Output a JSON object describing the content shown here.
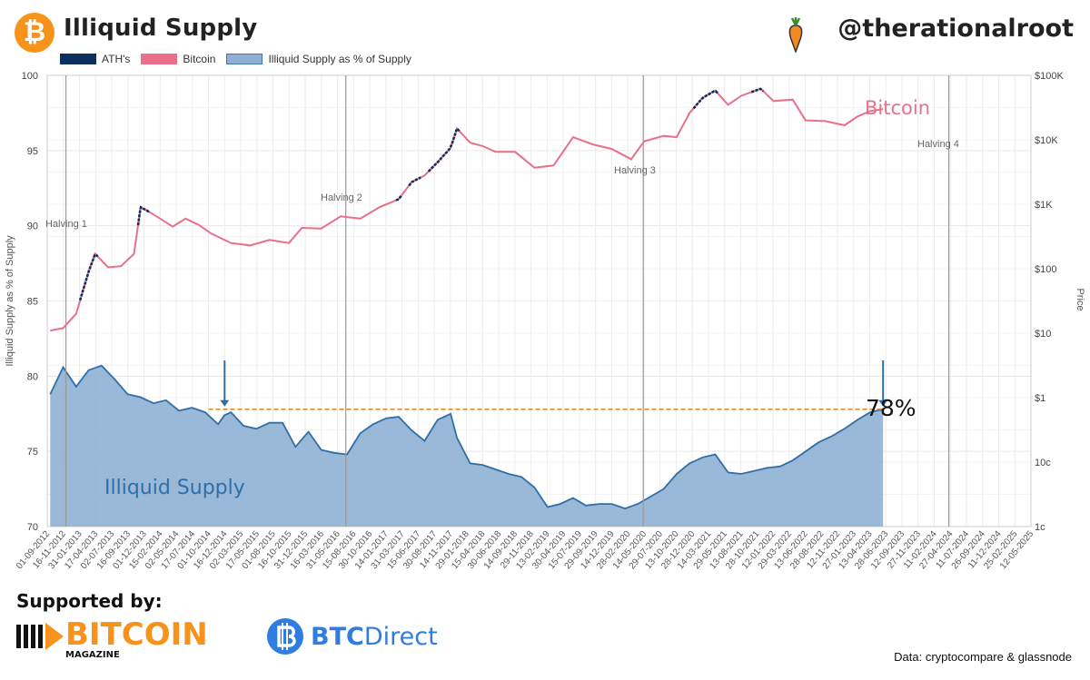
{
  "header": {
    "title": "Illiquid Supply",
    "handle": "@therationalroot",
    "logo_symbol": "₿"
  },
  "legend": [
    {
      "label": "ATH's",
      "color": "#0d2f5e"
    },
    {
      "label": "Bitcoin",
      "color": "#e8708a"
    },
    {
      "label": "Illiquid Supply as % of Supply",
      "color": "#8fb0d3"
    }
  ],
  "chart_data": {
    "type": "line",
    "ylabel": "Illiquid Supply as % of Supply",
    "y2label": "Price",
    "ylim": [
      70,
      100
    ],
    "y_ticks": [
      "100",
      "95",
      "90",
      "85",
      "80",
      "75",
      "70"
    ],
    "y2_scale": "log",
    "y2_ticks": [
      "$100K",
      "$10K",
      "$1K",
      "$100",
      "$10",
      "$1",
      "10c",
      "1c"
    ],
    "x_ticks": [
      "01-09-2012",
      "16-11-2012",
      "31-01-2013",
      "17-04-2013",
      "02-07-2013",
      "16-09-2013",
      "01-12-2013",
      "15-02-2014",
      "02-05-2014",
      "17-07-2014",
      "01-10-2014",
      "16-12-2014",
      "02-03-2015",
      "17-05-2015",
      "01-08-2015",
      "16-10-2015",
      "31-12-2015",
      "16-03-2016",
      "31-05-2016",
      "15-08-2016",
      "30-10-2016",
      "14-01-2017",
      "31-03-2017",
      "15-06-2017",
      "30-08-2017",
      "14-11-2017",
      "29-01-2018",
      "15-04-2018",
      "30-06-2018",
      "14-09-2018",
      "29-11-2018",
      "13-02-2019",
      "30-04-2019",
      "15-07-2019",
      "29-09-2019",
      "14-12-2019",
      "28-02-2020",
      "14-05-2020",
      "29-07-2020",
      "13-10-2020",
      "28-12-2020",
      "14-03-2021",
      "29-05-2021",
      "13-08-2021",
      "28-10-2021",
      "12-01-2022",
      "29-03-2022",
      "13-06-2022",
      "28-08-2022",
      "12-11-2022",
      "27-01-2023",
      "13-04-2023",
      "28-06-2023",
      "12-09-2023",
      "27-11-2023",
      "11-02-2024",
      "27-04-2024",
      "11-07-2024",
      "26-09-2024",
      "11-12-2024",
      "25-02-2025",
      "12-05-2025"
    ],
    "halvings": [
      {
        "label": "Halving 1",
        "date": "28-11-2012"
      },
      {
        "label": "Halving 2",
        "date": "09-07-2016"
      },
      {
        "label": "Halving 3",
        "date": "11-05-2020"
      },
      {
        "label": "Halving 4",
        "date": "20-04-2024"
      }
    ],
    "reference_level": 77.8,
    "annotations": {
      "current_value": "78%",
      "bitcoin_label": "Bitcoin",
      "illiquid_label": "Illiquid Supply"
    },
    "series": [
      {
        "name": "Illiquid Supply as % of Supply",
        "x": [
          "2012-09",
          "2012-11",
          "2013-01",
          "2013-03",
          "2013-05",
          "2013-07",
          "2013-09",
          "2013-11",
          "2014-01",
          "2014-03",
          "2014-05",
          "2014-07",
          "2014-09",
          "2014-11",
          "2014-12",
          "2015-01",
          "2015-03",
          "2015-05",
          "2015-07",
          "2015-09",
          "2015-11",
          "2016-01",
          "2016-03",
          "2016-05",
          "2016-07",
          "2016-09",
          "2016-11",
          "2017-01",
          "2017-03",
          "2017-05",
          "2017-07",
          "2017-09",
          "2017-11",
          "2017-12",
          "2018-02",
          "2018-04",
          "2018-06",
          "2018-08",
          "2018-10",
          "2018-12",
          "2019-02",
          "2019-04",
          "2019-06",
          "2019-08",
          "2019-10",
          "2019-12",
          "2020-02",
          "2020-04",
          "2020-06",
          "2020-08",
          "2020-10",
          "2020-12",
          "2021-02",
          "2021-04",
          "2021-06",
          "2021-08",
          "2021-10",
          "2021-12",
          "2022-02",
          "2022-04",
          "2022-06",
          "2022-08",
          "2022-10",
          "2022-12",
          "2023-02",
          "2023-04",
          "2023-06"
        ],
        "values": [
          78.8,
          80.6,
          79.3,
          80.4,
          80.7,
          79.8,
          78.8,
          78.6,
          78.2,
          78.4,
          77.7,
          77.9,
          77.6,
          76.8,
          77.4,
          77.6,
          76.7,
          76.5,
          76.9,
          76.9,
          75.3,
          76.3,
          75.1,
          74.9,
          74.8,
          76.2,
          76.8,
          77.2,
          77.3,
          76.4,
          75.7,
          77.1,
          77.5,
          75.9,
          74.2,
          74.1,
          73.8,
          73.5,
          73.3,
          72.6,
          71.3,
          71.5,
          71.9,
          71.4,
          71.5,
          71.5,
          71.2,
          71.5,
          72.0,
          72.5,
          73.5,
          74.2,
          74.6,
          74.8,
          73.6,
          73.5,
          73.7,
          73.9,
          74.0,
          74.4,
          75.0,
          75.6,
          76.0,
          76.5,
          77.1,
          77.6,
          77.8
        ]
      },
      {
        "name": "Bitcoin",
        "x": [
          "2012-09",
          "2012-11",
          "2013-01",
          "2013-03",
          "2013-04",
          "2013-06",
          "2013-08",
          "2013-10",
          "2013-11",
          "2013-12",
          "2014-02",
          "2014-04",
          "2014-06",
          "2014-08",
          "2014-10",
          "2015-01",
          "2015-04",
          "2015-07",
          "2015-10",
          "2015-12",
          "2016-03",
          "2016-06",
          "2016-09",
          "2016-12",
          "2017-03",
          "2017-05",
          "2017-07",
          "2017-09",
          "2017-11",
          "2017-12",
          "2018-02",
          "2018-04",
          "2018-06",
          "2018-09",
          "2018-12",
          "2019-03",
          "2019-06",
          "2019-09",
          "2019-12",
          "2020-03",
          "2020-05",
          "2020-08",
          "2020-10",
          "2020-12",
          "2021-02",
          "2021-04",
          "2021-06",
          "2021-08",
          "2021-11",
          "2022-01",
          "2022-04",
          "2022-06",
          "2022-09",
          "2022-12",
          "2023-02",
          "2023-04",
          "2023-06"
        ],
        "values": [
          11,
          12,
          20,
          90,
          170,
          105,
          110,
          170,
          900,
          800,
          600,
          450,
          600,
          480,
          350,
          250,
          230,
          280,
          250,
          430,
          420,
          650,
          600,
          900,
          1200,
          2200,
          2800,
          4500,
          7500,
          15000,
          9000,
          8000,
          6500,
          6500,
          3700,
          4000,
          11000,
          8500,
          7200,
          5000,
          9500,
          11500,
          11000,
          26000,
          45000,
          58000,
          35000,
          48000,
          62000,
          40000,
          42000,
          20000,
          19500,
          16800,
          23000,
          28000,
          30000
        ]
      }
    ],
    "ath_segments": [
      {
        "from": "2013-02",
        "to": "2013-04"
      },
      {
        "from": "2013-11",
        "to": "2013-12"
      },
      {
        "from": "2017-03",
        "to": "2017-03"
      },
      {
        "from": "2017-05",
        "to": "2017-06"
      },
      {
        "from": "2017-08",
        "to": "2017-12"
      },
      {
        "from": "2021-01",
        "to": "2021-04"
      },
      {
        "from": "2021-10",
        "to": "2021-11"
      }
    ]
  },
  "footer": {
    "supported_by": "Supported by:",
    "sponsor1": "BITCOIN",
    "sponsor1_sub": "MAGAZINE",
    "sponsor2_a": "BTC",
    "sponsor2_b": "Direct",
    "source": "Data: cryptocompare & glassnode"
  }
}
